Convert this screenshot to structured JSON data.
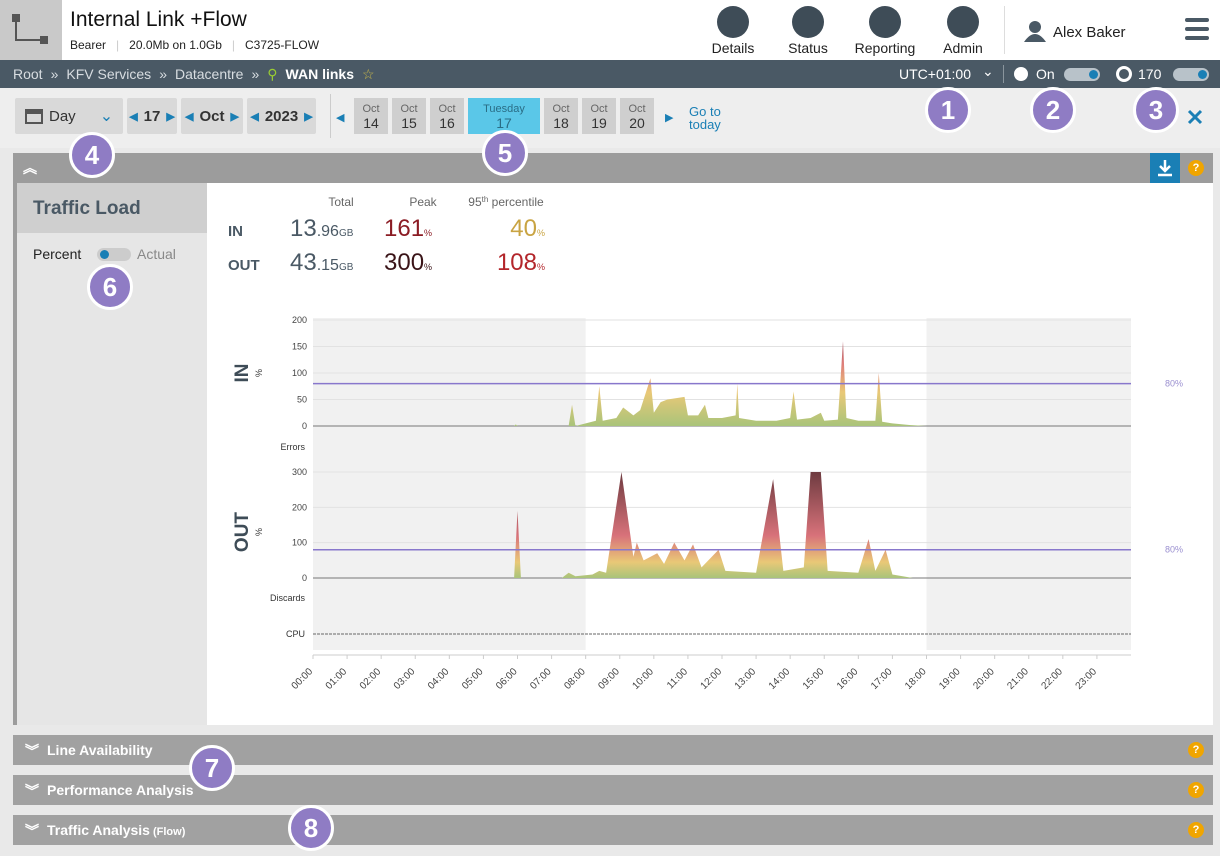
{
  "header": {
    "title": "Internal Link +Flow",
    "meta": [
      "Bearer",
      "20.0Mb on 1.0Gb",
      "C3725-FLOW"
    ],
    "nav": [
      "Details",
      "Status",
      "Reporting",
      "Admin"
    ],
    "user": "Alex Baker"
  },
  "breadcrumb": {
    "items": [
      "Root",
      "KFV Services",
      "Datacentre",
      "WAN links"
    ],
    "timezone": "UTC+01:00",
    "refresh": "On",
    "count": 170
  },
  "date_bar": {
    "period": "Day",
    "day": 17,
    "month": "Oct",
    "year": 2023,
    "days": [
      {
        "month": "Oct",
        "day": 14
      },
      {
        "month": "Oct",
        "day": 15
      },
      {
        "month": "Oct",
        "day": 16
      },
      {
        "weekday": "Tuesday",
        "day": 17
      },
      {
        "month": "Oct",
        "day": 18
      },
      {
        "month": "Oct",
        "day": 19
      },
      {
        "month": "Oct",
        "day": 20
      }
    ],
    "today": "Go to today"
  },
  "callouts": [
    1,
    2,
    3,
    4,
    5,
    6,
    7,
    8
  ],
  "panel": {
    "title": "Traffic Load",
    "toggle": [
      "Percent",
      "Actual"
    ],
    "stats": {
      "headers": {
        "total": "Total",
        "peak": "Peak",
        "p95": [
          "95",
          "th",
          " percentile"
        ]
      },
      "rows": [
        {
          "label": "IN",
          "total": {
            "int": "13",
            "dec": ".96",
            "unit": "GB"
          },
          "peak": {
            "value": "161",
            "unit": "%"
          },
          "p95": {
            "value": "40",
            "unit": "%"
          }
        },
        {
          "label": "OUT",
          "total": {
            "int": "43",
            "dec": ".15",
            "unit": "GB"
          },
          "peak": {
            "value": "300",
            "unit": "%"
          },
          "p95": {
            "value": "108",
            "unit": "%"
          }
        }
      ]
    }
  },
  "traffic_chart": {
    "type": "area",
    "xlim": [
      0,
      24
    ],
    "xticks": [
      {
        "value": 0,
        "label": "00:00"
      },
      {
        "value": 1,
        "label": "01:00"
      },
      {
        "value": 2,
        "label": "02:00"
      },
      {
        "value": 3,
        "label": "03:00"
      },
      {
        "value": 4,
        "label": "04:00"
      },
      {
        "value": 5,
        "label": "05:00"
      },
      {
        "value": 6,
        "label": "06:00"
      },
      {
        "value": 7,
        "label": "07:00"
      },
      {
        "value": 8,
        "label": "08:00"
      },
      {
        "value": 9,
        "label": "09:00"
      },
      {
        "value": 10,
        "label": "10:00"
      },
      {
        "value": 11,
        "label": "11:00"
      },
      {
        "value": 12,
        "label": "12:00"
      },
      {
        "value": 13,
        "label": "13:00"
      },
      {
        "value": 14,
        "label": "14:00"
      },
      {
        "value": 15,
        "label": "15:00"
      },
      {
        "value": 16,
        "label": "16:00"
      },
      {
        "value": 17,
        "label": "17:00"
      },
      {
        "value": 18,
        "label": "18:00"
      },
      {
        "value": 19,
        "label": "19:00"
      },
      {
        "value": 20,
        "label": "20:00"
      },
      {
        "value": 21,
        "label": "21:00"
      },
      {
        "value": 22,
        "label": "22:00"
      },
      {
        "value": 23,
        "label": "23:00"
      }
    ],
    "in": {
      "label": "IN",
      "unit": "%",
      "ylim": [
        0,
        200
      ],
      "yticks": [
        0,
        50,
        100,
        150,
        200
      ],
      "threshold": 80,
      "threshold_label": "80%",
      "x": [
        0,
        5.9,
        5.95,
        6.0,
        7.5,
        7.6,
        7.7,
        8.0,
        8.3,
        8.4,
        8.5,
        8.9,
        9.1,
        9.4,
        9.6,
        9.9,
        10.0,
        10.2,
        10.4,
        10.9,
        11.0,
        11.3,
        11.5,
        11.6,
        12.0,
        12.4,
        12.45,
        12.5,
        13.0,
        13.6,
        14.0,
        14.1,
        14.2,
        14.6,
        14.9,
        15.0,
        15.4,
        15.55,
        15.65,
        16.0,
        16.5,
        16.6,
        16.7,
        17.0,
        17.5,
        18.0,
        24
      ],
      "values": [
        0,
        0,
        3,
        0,
        0,
        40,
        0,
        5,
        10,
        75,
        10,
        15,
        35,
        20,
        30,
        90,
        25,
        45,
        50,
        55,
        20,
        20,
        40,
        15,
        15,
        20,
        80,
        15,
        10,
        10,
        15,
        65,
        12,
        15,
        25,
        10,
        12,
        160,
        15,
        10,
        10,
        100,
        8,
        5,
        2,
        0,
        0
      ]
    },
    "out": {
      "label": "OUT",
      "unit": "%",
      "ylim": [
        0,
        300
      ],
      "yticks": [
        0,
        100,
        200,
        300
      ],
      "threshold": 80,
      "threshold_label": "80%",
      "x": [
        0,
        5.9,
        6.0,
        6.1,
        7.3,
        7.5,
        7.7,
        8.2,
        8.4,
        8.6,
        9.05,
        9.4,
        9.5,
        9.7,
        10.1,
        10.3,
        10.6,
        10.9,
        11.15,
        11.4,
        11.9,
        12.1,
        13.0,
        13.5,
        13.8,
        14.4,
        14.6,
        14.9,
        15.1,
        16.0,
        16.3,
        16.5,
        16.8,
        17.0,
        17.6,
        24
      ],
      "values": [
        0,
        0,
        190,
        0,
        0,
        15,
        5,
        10,
        20,
        15,
        300,
        60,
        100,
        50,
        70,
        40,
        100,
        50,
        95,
        30,
        80,
        20,
        15,
        280,
        20,
        30,
        300,
        300,
        20,
        15,
        110,
        20,
        80,
        10,
        0,
        0
      ]
    },
    "rows": [
      "Errors",
      "Discards",
      "CPU"
    ]
  },
  "sections": [
    {
      "title": "Line Availability"
    },
    {
      "title": "Performance Analysis"
    },
    {
      "title": "Traffic Analysis",
      "suffix": "(Flow)"
    }
  ]
}
